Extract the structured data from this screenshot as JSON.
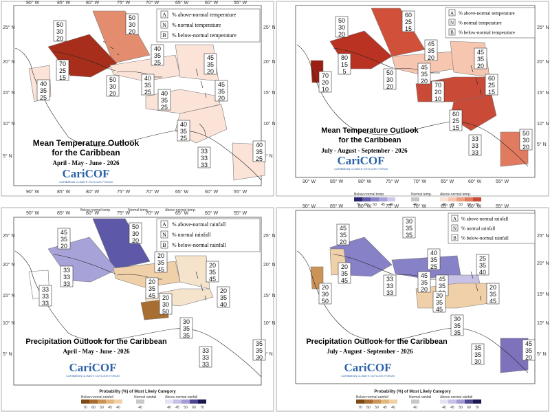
{
  "colors": {
    "above": [
      "#fbe3d8",
      "#f6c6b0",
      "#ee9f80",
      "#e07b5f",
      "#c94a36",
      "#9b1f12"
    ],
    "below": [
      "#e9e8f6",
      "#cbc9ea",
      "#a7a3d8",
      "#8782c7",
      "#5e58a8",
      "#2a2470"
    ],
    "precip_above": [
      "#e6e2f3",
      "#c8c1e6",
      "#a59ad4",
      "#7f72bd",
      "#4f4590",
      "#1d1750"
    ],
    "precip_below": [
      "#f5e3cc",
      "#f0d0a8",
      "#e3b67e",
      "#cc9356",
      "#a86d30",
      "#7c4a17"
    ],
    "normal": "#c8c8c8",
    "land": "#ffffff",
    "outline": "#333333"
  },
  "panels": [
    {
      "id": "temp_amj",
      "title_line1": "Mean Temperature Outlook",
      "title_line2": "for the Caribbean",
      "period": "April - May - June - 2026",
      "legend": [
        {
          "letter": "A",
          "text": "% above-normal temperature"
        },
        {
          "letter": "N",
          "text": "% normal temperature"
        },
        {
          "letter": "B",
          "text": "% below-normal temperature"
        }
      ],
      "lon_labels": [
        "90° W",
        "85° W",
        "80° W",
        "75° W",
        "70° W",
        "65° W",
        "60° W",
        "55° W"
      ],
      "lat_labels_left": [
        "25° N",
        "20° N",
        "15° N",
        "10° N",
        "5° N"
      ],
      "lat_labels_right": [
        "25° N",
        "20° N",
        "15° N",
        "10° N",
        "5° N"
      ],
      "stacks": [
        [
          "50",
          "30",
          "20"
        ],
        [
          "50",
          "30",
          "20"
        ],
        [
          "40",
          "35",
          "25"
        ],
        [
          "70",
          "25",
          "15"
        ],
        [
          "40",
          "35",
          "25"
        ],
        [
          "50",
          "30",
          "20"
        ],
        [
          "40",
          "35",
          "25"
        ],
        [
          "45",
          "35",
          "20"
        ],
        [
          "45",
          "35",
          "20"
        ],
        [
          "40",
          "35",
          "25"
        ],
        [
          "40",
          "35",
          "25"
        ],
        [
          "33",
          "33",
          "33"
        ],
        [
          "40",
          "35",
          "25"
        ]
      ]
    },
    {
      "id": "temp_jas",
      "title_line1": "Mean Temperature Outlook",
      "title_line2": "for the Caribbean",
      "period": "July - August - September - 2026",
      "legend": [
        {
          "letter": "A",
          "text": "% above-normal temperature"
        },
        {
          "letter": "N",
          "text": "% normal temperature"
        },
        {
          "letter": "B",
          "text": "% below-normal temperature"
        }
      ],
      "lon_labels": [
        "90° W",
        "85° W",
        "80° W",
        "75° W",
        "70° W",
        "65° W",
        "60° W",
        "55° W"
      ],
      "lat_labels_right": [
        "25° N",
        "20° N",
        "15° N",
        "10° N",
        "5° N"
      ],
      "stacks": [
        [
          "50",
          "30",
          "20"
        ],
        [
          "60",
          "25",
          "15"
        ],
        [
          "45",
          "35",
          "20"
        ],
        [
          "80",
          "15",
          "5"
        ],
        [
          "70",
          "20",
          "10"
        ],
        [
          "50",
          "30",
          "20"
        ],
        [
          "45",
          "35",
          "20"
        ],
        [
          "45",
          "35",
          "20"
        ],
        [
          "70",
          "20",
          "10"
        ],
        [
          "60",
          "25",
          "15"
        ],
        [
          "60",
          "25",
          "15"
        ],
        [
          "33",
          "33",
          "33"
        ],
        [
          "50",
          "30",
          "20"
        ]
      ]
    },
    {
      "id": "prec_amj",
      "title_line1": "Precipitation Outlook for the Caribbean",
      "period": "April - May - June - 2026",
      "legend": [
        {
          "letter": "A",
          "text": "% above-normal rainfall"
        },
        {
          "letter": "N",
          "text": "% normal rainfall"
        },
        {
          "letter": "B",
          "text": "% below-normal rainfall"
        }
      ],
      "lon_labels": [
        "90° W",
        "85° W",
        "80° W",
        "75° W",
        "70° W",
        "65° W",
        "60° W",
        "55° W"
      ],
      "lat_labels_left": [
        "25° N",
        "20° N",
        "15° N",
        "10° N",
        "5° N"
      ],
      "lat_labels_right": [
        "25° N",
        "20° N",
        "15° N",
        "10° N",
        "5° N"
      ],
      "stacks": [
        [
          "45",
          "35",
          "20"
        ],
        [
          "50",
          "30",
          "20"
        ],
        [
          "33",
          "33",
          "33"
        ],
        [
          "33",
          "33",
          "33"
        ],
        [
          "20",
          "35",
          "45"
        ],
        [
          "20",
          "35",
          "45"
        ],
        [
          "20",
          "35",
          "45"
        ],
        [
          "20",
          "35",
          "40"
        ],
        [
          "20",
          "30",
          "50"
        ],
        [
          "30",
          "35",
          "35"
        ],
        [
          "33",
          "33",
          "33"
        ],
        [
          "35",
          "35",
          "30"
        ]
      ]
    },
    {
      "id": "prec_jas",
      "title_line1": "Precipitation Outlook for the Caribbean",
      "period": "July - August - September - 2026",
      "legend": [
        {
          "letter": "A",
          "text": "% above-normal rainfall"
        },
        {
          "letter": "N",
          "text": "% normal rainfall"
        },
        {
          "letter": "B",
          "text": "% below-normal rainfall"
        }
      ],
      "lon_labels": [
        "90° W",
        "85° W",
        "80° W",
        "75° W",
        "70° W",
        "65° W",
        "60° W",
        "55° W"
      ],
      "lat_labels_right": [
        "25° N",
        "20° N",
        "15° N",
        "10° N",
        "5° N"
      ],
      "stacks": [
        [
          "30",
          "35",
          "35"
        ],
        [
          "45",
          "35",
          "20"
        ],
        [
          "20",
          "35",
          "45"
        ],
        [
          "40",
          "35",
          "25"
        ],
        [
          "25",
          "35",
          "40"
        ],
        [
          "45",
          "35",
          "20"
        ],
        [
          "33",
          "33",
          "33"
        ],
        [
          "20",
          "30",
          "50"
        ],
        [
          "45",
          "35",
          "20"
        ],
        [
          "20",
          "35",
          "45"
        ],
        [
          "20",
          "35",
          "45"
        ],
        [
          "30",
          "35",
          "35"
        ],
        [
          "35",
          "35",
          "30"
        ],
        [
          "45",
          "35",
          "20"
        ]
      ]
    }
  ],
  "caricof": {
    "logo_text": "CariCOF",
    "subtitle": "CARIBBEAN CLIMATE OUTLOOK FORUM"
  },
  "temp_colorbar": {
    "below_label": "Below-normal temp.",
    "normal_label": "Normal temp.",
    "above_label": "Above-normal temp.",
    "below_ticks": [
      "70",
      "60",
      "50",
      "45",
      "40"
    ],
    "normal_ticks": [
      "40"
    ],
    "above_ticks": [
      "40",
      "45",
      "50",
      "60",
      "70"
    ]
  },
  "top_colorbar_labels": {
    "below": "Below-normal temp.",
    "normal": "Normal temp.",
    "above": "Above-normal temp."
  },
  "precip_colorbar": {
    "caption": "Probability (%) of Most Likely Category",
    "below_label": "Below-normal rainfall",
    "normal_label": "Normal rainfall",
    "above_label": "Above-normal rainfall",
    "below_ticks": [
      "70",
      "60",
      "50",
      "45",
      "40"
    ],
    "normal_ticks": [
      "40"
    ],
    "above_ticks": [
      "40",
      "45",
      "50",
      "60",
      "70"
    ]
  },
  "precip_colorbar2": {
    "caption": "Probability (%) of Most Likely Category",
    "below_label": "Below-normal rainfall",
    "normal_label": "Normal rainfall",
    "above_label": "Above-normal rainfall",
    "below_ticks": [
      "70",
      "60",
      "50",
      "45",
      "40"
    ],
    "normal_ticks": [
      "40"
    ],
    "above_ticks": [
      "40",
      "45",
      "50",
      "60",
      "70"
    ]
  }
}
